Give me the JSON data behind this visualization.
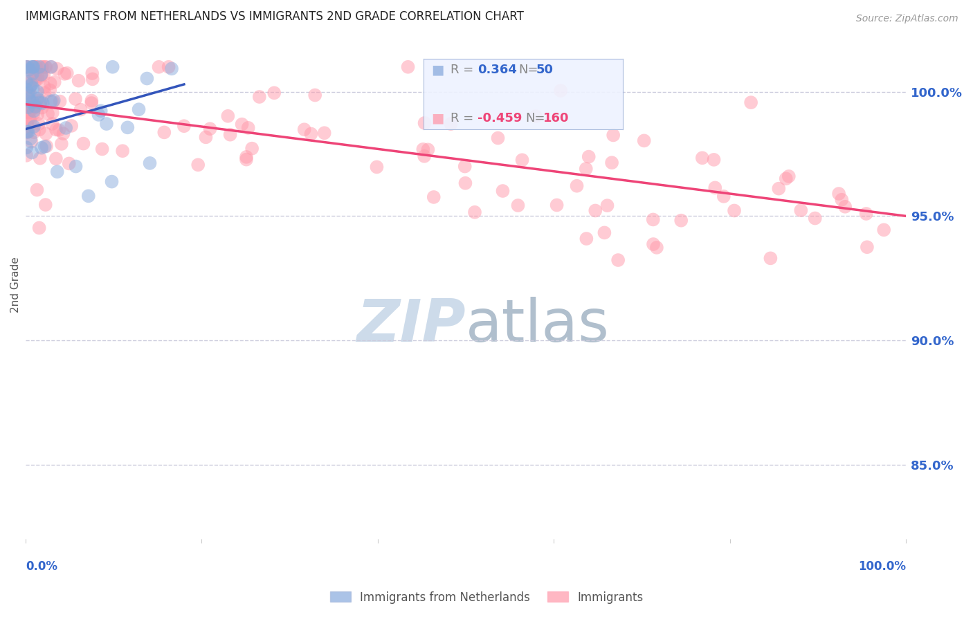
{
  "title": "IMMIGRANTS FROM NETHERLANDS VS IMMIGRANTS 2ND GRADE CORRELATION CHART",
  "source": "Source: ZipAtlas.com",
  "ylabel": "2nd Grade",
  "y_ticks": [
    85.0,
    90.0,
    95.0,
    100.0
  ],
  "x_range": [
    0.0,
    100.0
  ],
  "y_range": [
    82.0,
    102.5
  ],
  "blue_R": 0.364,
  "blue_N": 50,
  "pink_R": -0.459,
  "pink_N": 160,
  "blue_color": "#88AADD",
  "pink_color": "#FF99AA",
  "blue_line_color": "#3355BB",
  "pink_line_color": "#EE4477",
  "label_color": "#3366CC",
  "background_color": "#FFFFFF",
  "grid_color": "#CCCCDD",
  "watermark_zip_color": "#C8D8E8",
  "watermark_atlas_color": "#A8B8C8",
  "legend_bg_color": "#EEF2FF",
  "legend_border_color": "#AABBDD"
}
